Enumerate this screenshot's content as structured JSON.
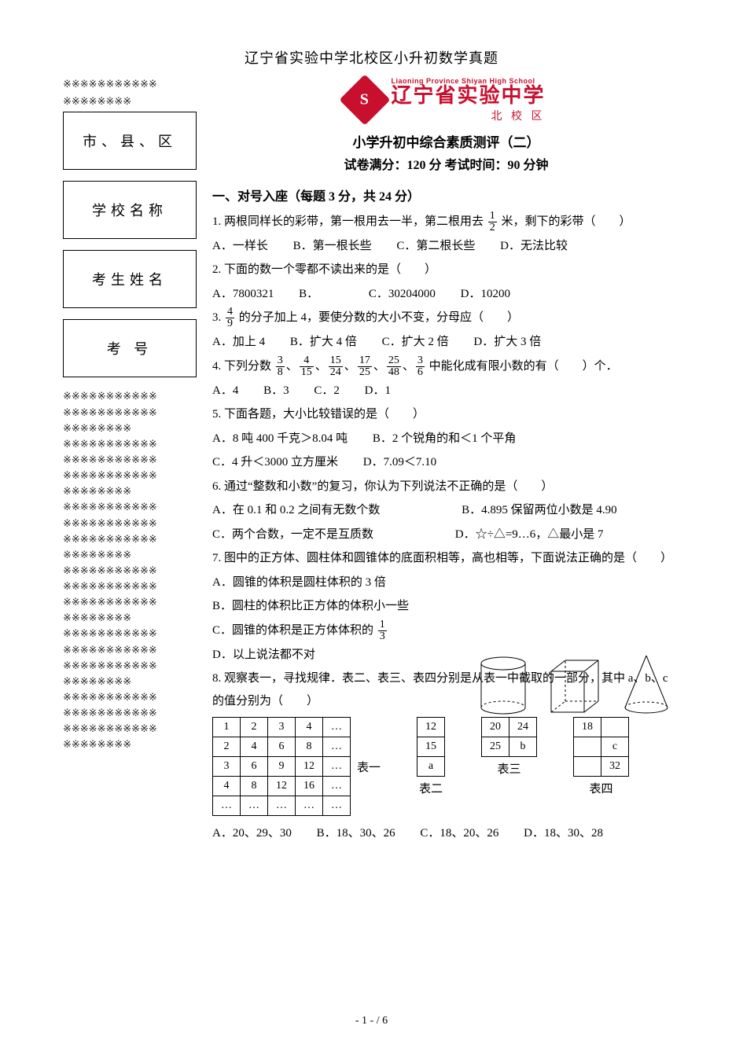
{
  "page": {
    "top_title": "辽宁省实验中学北校区小升初数学真题",
    "footer": "- 1 -  / 6"
  },
  "left": {
    "seal_line_top_1": "※※※※※※※※※※※",
    "seal_line_top_2": "※※※※※※※※",
    "boxes": [
      "市、县、区",
      "学校名称",
      "考生姓名",
      "考    号"
    ],
    "seal_lines_block": "※※※※※※※※※※※\n※※※※※※※※※※※\n※※※※※※※※\n※※※※※※※※※※※\n※※※※※※※※※※※\n※※※※※※※※※※※\n※※※※※※※※\n※※※※※※※※※※※\n※※※※※※※※※※※\n※※※※※※※※※※※\n※※※※※※※※\n※※※※※※※※※※※\n※※※※※※※※※※※\n※※※※※※※※※※※\n※※※※※※※※\n※※※※※※※※※※※\n※※※※※※※※※※※\n※※※※※※※※※※※\n※※※※※※※※\n※※※※※※※※※※※\n※※※※※※※※※※※\n※※※※※※※※※※※\n※※※※※※※※"
  },
  "logo": {
    "en": "Liaoning Province Shiyan High School",
    "cn": "辽宁省实验中学",
    "sub": "北 校 区",
    "glyph": "S",
    "color": "#c8102e"
  },
  "exam": {
    "title": "小学升初中综合素质测评（二）",
    "meta": "试卷满分：120 分   考试时间：90 分钟"
  },
  "section1": {
    "head": "一、对号入座（每题 3 分，共 24 分）"
  },
  "q1": {
    "stem_a": "1. 两根同样长的彩带，第一根用去一半，第二根用去",
    "frac_num": "1",
    "frac_den": "2",
    "stem_b": "米，剩下的彩带（　　）",
    "A": "A．一样长",
    "B": "B．第一根长些",
    "C": "C．第二根长些",
    "D": "D．无法比较"
  },
  "q2": {
    "stem": "2. 下面的数一个零都不读出来的是（　　）",
    "A": "A．7800321",
    "B": "B．",
    "C": "C．30204000",
    "D": "D．10200"
  },
  "q3": {
    "stem_a": "3. ",
    "frac_num": "4",
    "frac_den": "9",
    "stem_b": " 的分子加上 4，要使分数的大小不变，分母应（　　）",
    "A": "A．加上 4",
    "B": "B．扩大 4 倍",
    "C": "C．扩大 2 倍",
    "D": "D．扩大 3 倍"
  },
  "q4": {
    "stem_a": "4. 下列分数",
    "stem_b": "中能化成有限小数的有（　　）个．",
    "fracs": [
      {
        "n": "3",
        "d": "8"
      },
      {
        "n": "4",
        "d": "15"
      },
      {
        "n": "15",
        "d": "24"
      },
      {
        "n": "17",
        "d": "25"
      },
      {
        "n": "25",
        "d": "48"
      },
      {
        "n": "3",
        "d": "6"
      }
    ],
    "A": "A．4",
    "B": "B．3",
    "C": "C．2",
    "D": "D．1"
  },
  "q5": {
    "stem": "5. 下面各题，大小比较错误的是（　　）",
    "A": "A．8 吨 400 千克＞8.04 吨",
    "B": "B．2 个锐角的和＜1 个平角",
    "C": "C．4 升＜3000 立方厘米",
    "D": "D．7.09＜7.10"
  },
  "q6": {
    "stem": "6. 通过“整数和小数”的复习，你认为下列说法不正确的是（　　）",
    "A": "A．在 0.1 和 0.2 之间有无数个数",
    "B": "B．4.895 保留两位小数是 4.90",
    "C": "C．两个合数，一定不是互质数",
    "D": "D．☆÷△=9…6，△最小是 7"
  },
  "q7": {
    "stem": "7. 图中的正方体、圆柱体和圆锥体的底面积相等，高也相等，下面说法正确的是（　　）",
    "A": "A．圆锥的体积是圆柱体积的 3 倍",
    "B": "B．圆柱的体积比正方体的体积小一些",
    "C_a": "C．圆锥的体积是正方体体积的",
    "C_num": "1",
    "C_den": "3",
    "D": "D．以上说法都不对"
  },
  "q8": {
    "stem": "8. 观察表一，寻找规律．表二、表三、表四分别是从表一中截取的一部分，其中 a、b、c 的值分别为（　　）",
    "t1_label": "表一",
    "t2_label": "表二",
    "t3_label": "表三",
    "t4_label": "表四",
    "t1": [
      [
        "1",
        "2",
        "3",
        "4",
        "…"
      ],
      [
        "2",
        "4",
        "6",
        "8",
        "…"
      ],
      [
        "3",
        "6",
        "9",
        "12",
        "…"
      ],
      [
        "4",
        "8",
        "12",
        "16",
        "…"
      ],
      [
        "…",
        "…",
        "…",
        "…",
        "…"
      ]
    ],
    "t2": [
      [
        "12"
      ],
      [
        "15"
      ],
      [
        "a"
      ]
    ],
    "t3": [
      [
        "20",
        "24"
      ],
      [
        "25",
        "b"
      ]
    ],
    "t4": [
      [
        "18",
        ""
      ],
      [
        "",
        "c"
      ],
      [
        "",
        "32"
      ]
    ],
    "A": "A．20、29、30",
    "B": "B．18、30、26",
    "C": "C．18、20、26",
    "D": "D．18、30、28"
  }
}
